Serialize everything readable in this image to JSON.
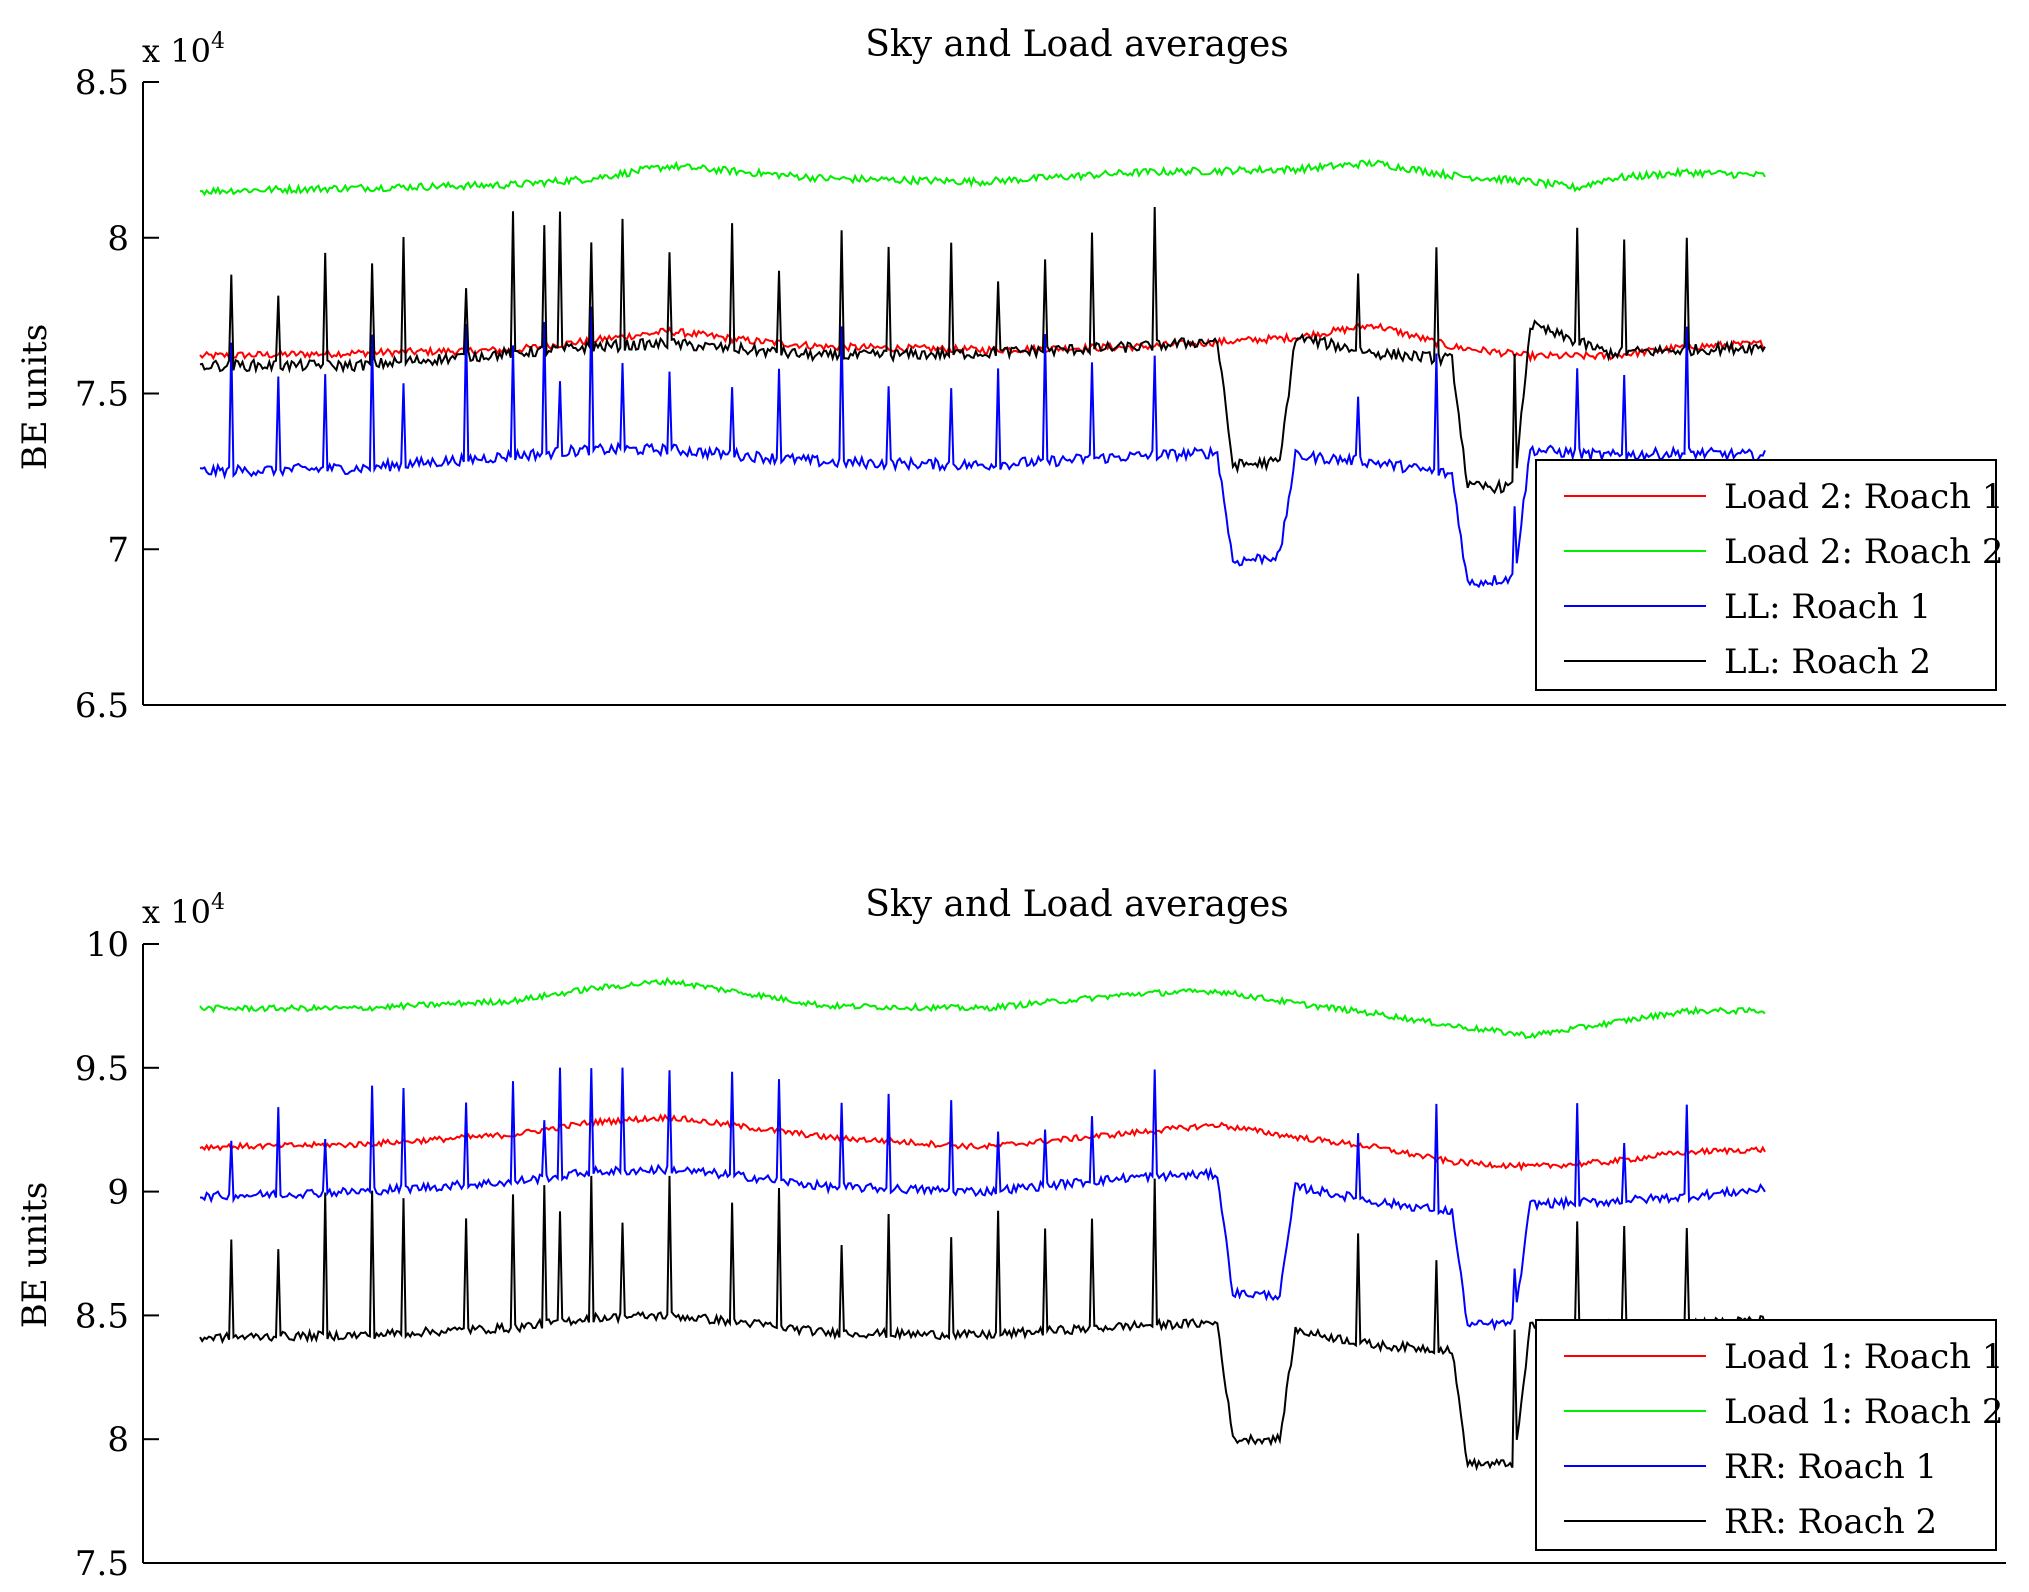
{
  "chart_data": [
    {
      "type": "line",
      "title": "Sky and Load averages",
      "ylabel": "BE units",
      "exponent_label": "x 10",
      "exponent_power": "4",
      "ylim": [
        65000,
        85000
      ],
      "yticks": [
        65000,
        70000,
        75000,
        80000,
        85000
      ],
      "ytick_labels": [
        "6.5",
        "7",
        "7.5",
        "8",
        "8.5"
      ],
      "xlim": [
        0,
        100
      ],
      "grid": false,
      "legend_position": "bottom-right",
      "series": [
        {
          "name": "Load 2: Roach 1",
          "color": "#ff0000",
          "x": [
            0,
            10,
            20,
            25,
            30,
            35,
            40,
            50,
            60,
            70,
            75,
            80,
            85,
            88,
            90,
            95,
            100
          ],
          "y": [
            76200,
            76300,
            76400,
            76700,
            77000,
            76700,
            76500,
            76400,
            76500,
            76800,
            77200,
            76500,
            76200,
            76200,
            76200,
            76500,
            76600
          ]
        },
        {
          "name": "Load 2: Roach 2",
          "color": "#00ee00",
          "x": [
            0,
            10,
            20,
            25,
            30,
            35,
            40,
            50,
            60,
            70,
            75,
            80,
            85,
            88,
            90,
            95,
            100
          ],
          "y": [
            81500,
            81600,
            81700,
            81900,
            82300,
            82100,
            81900,
            81800,
            82100,
            82200,
            82400,
            82000,
            81800,
            81600,
            81900,
            82100,
            82000
          ]
        },
        {
          "name": "LL: Roach 1",
          "color": "#0000ff",
          "x": [
            0,
            10,
            20,
            25,
            30,
            35,
            40,
            50,
            60,
            65,
            66,
            69,
            70,
            75,
            80,
            81,
            84,
            85,
            90,
            95,
            100
          ],
          "y": [
            72500,
            72600,
            73000,
            73200,
            73200,
            73000,
            72800,
            72700,
            73000,
            73100,
            69600,
            69800,
            73000,
            72800,
            72400,
            68900,
            69100,
            73200,
            73000,
            73100,
            73000
          ]
        },
        {
          "name": "LL: Roach 2",
          "color": "#000000",
          "x": [
            0,
            10,
            20,
            25,
            30,
            35,
            40,
            50,
            60,
            65,
            66,
            69,
            70,
            75,
            80,
            81,
            84,
            85,
            90,
            95,
            100
          ],
          "y": [
            75900,
            75900,
            76300,
            76500,
            76600,
            76400,
            76200,
            76300,
            76500,
            76700,
            72700,
            72800,
            76800,
            76300,
            76100,
            72000,
            72000,
            77200,
            76300,
            76400,
            76500
          ]
        }
      ]
    },
    {
      "type": "line",
      "title": "Sky and Load averages",
      "ylabel": "BE units",
      "exponent_label": "x 10",
      "exponent_power": "4",
      "ylim": [
        75000,
        100000
      ],
      "yticks": [
        75000,
        80000,
        85000,
        90000,
        95000,
        100000
      ],
      "ytick_labels": [
        "7.5",
        "8",
        "8.5",
        "9",
        "9.5",
        "10"
      ],
      "xlim": [
        0,
        100
      ],
      "grid": false,
      "legend_position": "bottom-right",
      "series": [
        {
          "name": "Load 1: Roach 1",
          "color": "#ff0000",
          "x": [
            0,
            10,
            20,
            25,
            30,
            35,
            40,
            50,
            60,
            65,
            70,
            75,
            80,
            85,
            90,
            95,
            100
          ],
          "y": [
            91800,
            91900,
            92300,
            92800,
            93000,
            92600,
            92200,
            91800,
            92400,
            92700,
            92200,
            91800,
            91200,
            91000,
            91200,
            91600,
            91700
          ]
        },
        {
          "name": "Load 1: Roach 2",
          "color": "#00ee00",
          "x": [
            0,
            10,
            20,
            25,
            30,
            35,
            40,
            50,
            60,
            65,
            70,
            75,
            80,
            85,
            90,
            95,
            100
          ],
          "y": [
            97400,
            97400,
            97700,
            98200,
            98500,
            98000,
            97500,
            97400,
            98000,
            98100,
            97600,
            97200,
            96700,
            96300,
            96800,
            97300,
            97300
          ]
        },
        {
          "name": "RR: Roach 1",
          "color": "#0000ff",
          "x": [
            0,
            10,
            20,
            25,
            30,
            35,
            40,
            50,
            60,
            65,
            66,
            69,
            70,
            75,
            80,
            81,
            84,
            85,
            90,
            95,
            100
          ],
          "y": [
            89800,
            90000,
            90400,
            90800,
            90900,
            90600,
            90200,
            90000,
            90600,
            90700,
            85900,
            85800,
            90200,
            89600,
            89200,
            84600,
            84700,
            89500,
            89600,
            89800,
            90100
          ]
        },
        {
          "name": "RR: Roach 2",
          "color": "#000000",
          "x": [
            0,
            10,
            20,
            25,
            30,
            35,
            40,
            50,
            60,
            65,
            66,
            69,
            70,
            75,
            80,
            81,
            84,
            85,
            90,
            95,
            100
          ],
          "y": [
            84100,
            84200,
            84500,
            84900,
            85000,
            84700,
            84300,
            84200,
            84600,
            84700,
            80000,
            80000,
            84400,
            83800,
            83600,
            79000,
            79000,
            84600,
            84600,
            84700,
            84800
          ]
        }
      ]
    }
  ]
}
